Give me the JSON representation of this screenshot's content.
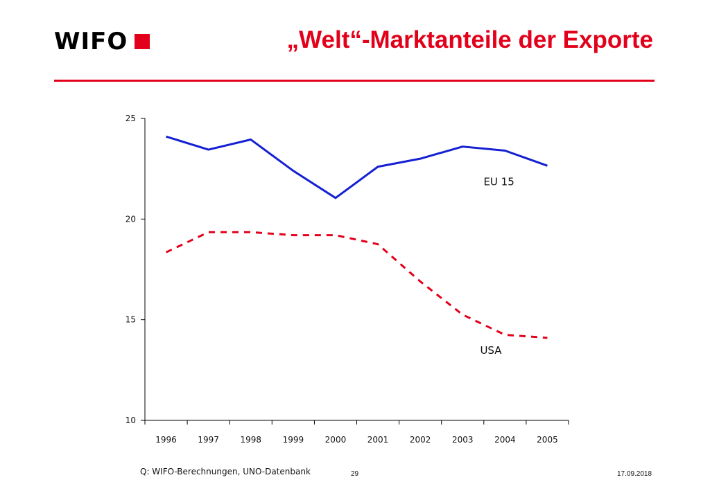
{
  "header": {
    "logo_text": "WIFO",
    "title": "„Welt“-Marktanteile der Exporte"
  },
  "colors": {
    "accent": "#e2001a",
    "eu_line": "#1420d2",
    "usa_line": "#e2001a"
  },
  "chart_data": {
    "type": "line",
    "x": [
      "1996",
      "1997",
      "1998",
      "1999",
      "2000",
      "2001",
      "2002",
      "2003",
      "2004",
      "2005"
    ],
    "ylim": [
      10,
      25
    ],
    "yticks": [
      10,
      15,
      20,
      25
    ],
    "grid": false,
    "series": [
      {
        "name": "EU 15",
        "style": "solid",
        "values": [
          24.1,
          23.45,
          23.95,
          22.4,
          21.05,
          22.6,
          23.0,
          23.6,
          23.4,
          22.65
        ]
      },
      {
        "name": "USA",
        "style": "dashed",
        "values": [
          18.35,
          19.35,
          19.35,
          19.2,
          19.2,
          18.75,
          16.9,
          15.25,
          14.25,
          14.1
        ]
      }
    ]
  },
  "footer": {
    "source": "Q: WIFO-Berechnungen, UNO-Datenbank",
    "page_number": "29",
    "date": "17.09.2018"
  }
}
